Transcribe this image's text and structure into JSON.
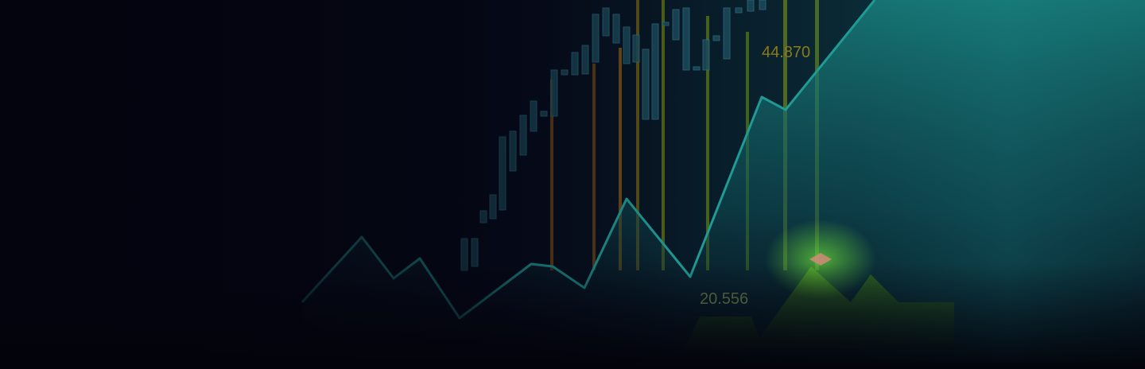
{
  "labels": {
    "upper": "44.870",
    "lower": "20.556"
  }
}
